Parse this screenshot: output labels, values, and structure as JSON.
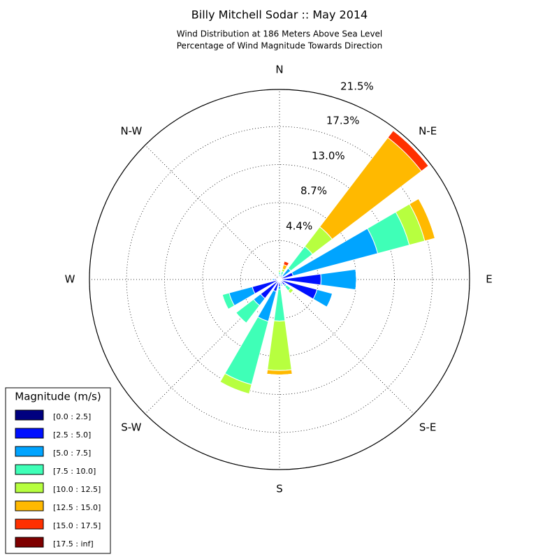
{
  "chart_data": {
    "type": "windrose",
    "title": "Billy Mitchell Sodar :: May 2014",
    "subtitle": [
      "Wind Distribution at 186 Meters Above Sea Level",
      "Percentage of Wind Magnitude Towards Direction"
    ],
    "legend_title": "Magnitude (m/s)",
    "legend_position": "lower left",
    "categories": [
      "N",
      null,
      "N-E",
      null,
      "E",
      null,
      "S-E",
      null,
      "S",
      null,
      "S-W",
      null,
      "W",
      null,
      "N-W",
      null
    ],
    "ylim": [
      0,
      21.5
    ],
    "yticks": [
      {
        "value": 4.4,
        "label": "4.4%"
      },
      {
        "value": 8.7,
        "label": "8.7%"
      },
      {
        "value": 13.0,
        "label": "13.0%"
      },
      {
        "value": 17.3,
        "label": "17.3%"
      },
      {
        "value": 21.5,
        "label": "21.5%"
      }
    ],
    "grid": true,
    "series": [
      {
        "name": "[0.0 : 2.5]",
        "color": "#00007f",
        "values": [
          0.05,
          0.05,
          0.1,
          0.2,
          0.3,
          0.3,
          0.2,
          0.1,
          0.2,
          0.2,
          0.2,
          0.2,
          0.1,
          0.1,
          0.1,
          0.05
        ]
      },
      {
        "name": "[2.5 : 5.0]",
        "color": "#0010ff",
        "values": [
          0.2,
          0.2,
          0.4,
          1.4,
          4.4,
          4.1,
          0.6,
          0.3,
          0.6,
          1.2,
          2.5,
          3.0,
          0.5,
          0.1,
          0.1,
          0.1
        ]
      },
      {
        "name": "[5.0 : 7.5]",
        "color": "#00a4ff",
        "values": [
          0.3,
          0.3,
          1.1,
          9.9,
          4.0,
          1.8,
          0.2,
          0.2,
          0.3,
          3.5,
          1.0,
          2.7,
          0.2,
          0,
          0,
          0
        ]
      },
      {
        "name": "[7.5 : 10.0]",
        "color": "#3fffb7",
        "values": [
          0.3,
          0.4,
          3.1,
          3.7,
          0,
          0,
          0.6,
          0.2,
          3.6,
          7.4,
          2.5,
          0.8,
          0,
          0,
          0,
          0
        ]
      },
      {
        "name": "[10.0 : 12.5]",
        "color": "#b7ff3f",
        "values": [
          0.2,
          0.3,
          2.8,
          1.8,
          0,
          0,
          0.4,
          0,
          5.6,
          1.1,
          0,
          0,
          0,
          0,
          0,
          0
        ]
      },
      {
        "name": "[12.5 : 15.0]",
        "color": "#ffb900",
        "values": [
          0,
          0.5,
          12.7,
          1.2,
          0,
          0,
          0,
          0,
          0.5,
          0,
          0,
          0,
          0,
          0,
          0,
          0
        ]
      },
      {
        "name": "[15.0 : 17.5]",
        "color": "#ff3000",
        "values": [
          0,
          0.4,
          1.0,
          0,
          0,
          0,
          0,
          0,
          0,
          0,
          0,
          0,
          0,
          0,
          0,
          0
        ]
      },
      {
        "name": "[17.5 : inf]",
        "color": "#7f0000",
        "values": [
          0,
          0,
          0,
          0,
          0,
          0,
          0,
          0,
          0,
          0,
          0,
          0,
          0,
          0,
          0,
          0
        ]
      }
    ]
  }
}
